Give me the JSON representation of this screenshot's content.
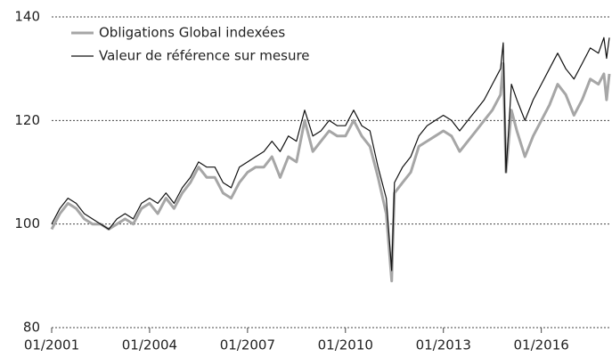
{
  "chart_data": {
    "type": "line",
    "x": [
      "01/2001",
      "04/2001",
      "07/2001",
      "10/2001",
      "01/2002",
      "04/2002",
      "07/2002",
      "10/2002",
      "01/2003",
      "04/2003",
      "07/2003",
      "10/2003",
      "01/2004",
      "04/2004",
      "07/2004",
      "10/2004",
      "01/2005",
      "04/2005",
      "07/2005",
      "10/2005",
      "01/2006",
      "04/2006",
      "07/2006",
      "10/2006",
      "01/2007",
      "04/2007",
      "07/2007",
      "10/2007",
      "01/2008",
      "04/2008",
      "07/2008",
      "10/2008",
      "01/2009",
      "04/2009",
      "07/2009",
      "10/2009",
      "01/2010",
      "04/2010",
      "07/2010",
      "10/2010",
      "01/2011",
      "04/2011",
      "06/2011",
      "07/2011",
      "10/2011",
      "01/2012",
      "04/2012",
      "07/2012",
      "10/2012",
      "01/2013",
      "04/2013",
      "07/2013",
      "10/2013",
      "01/2014",
      "04/2014",
      "07/2014",
      "10/2014",
      "11/2014",
      "12/2014",
      "02/2015",
      "04/2015",
      "07/2015",
      "10/2015",
      "01/2016",
      "04/2016",
      "07/2016",
      "10/2016",
      "01/2017",
      "04/2017",
      "07/2017",
      "10/2017",
      "12/2017",
      "01/2018",
      "02/2018"
    ],
    "series": [
      {
        "name": "Obligations Global indexées",
        "color": "#a6a6a6",
        "values": [
          99,
          102,
          104,
          103,
          101,
          100,
          100,
          99,
          100,
          101,
          100,
          103,
          104,
          102,
          105,
          103,
          106,
          108,
          111,
          109,
          109,
          106,
          105,
          108,
          110,
          111,
          111,
          113,
          109,
          113,
          112,
          120,
          114,
          116,
          118,
          117,
          117,
          120,
          117,
          115,
          109,
          102,
          89,
          106,
          108,
          110,
          115,
          116,
          117,
          118,
          117,
          114,
          116,
          118,
          120,
          122,
          125,
          131,
          110,
          122,
          118,
          113,
          117,
          120,
          123,
          127,
          125,
          121,
          124,
          128,
          127,
          129,
          124,
          129
        ]
      },
      {
        "name": "Valeur de référence sur mesure",
        "color": "#111111",
        "values": [
          100,
          103,
          105,
          104,
          102,
          101,
          100,
          99,
          101,
          102,
          101,
          104,
          105,
          104,
          106,
          104,
          107,
          109,
          112,
          111,
          111,
          108,
          107,
          111,
          112,
          113,
          114,
          116,
          114,
          117,
          116,
          122,
          117,
          118,
          120,
          119,
          119,
          122,
          119,
          118,
          111,
          105,
          91,
          108,
          111,
          113,
          117,
          119,
          120,
          121,
          120,
          118,
          120,
          122,
          124,
          127,
          130,
          135,
          110,
          127,
          124,
          120,
          124,
          127,
          130,
          133,
          130,
          128,
          131,
          134,
          133,
          136,
          132,
          136
        ]
      }
    ],
    "xlim": [
      "01/2001",
      "02/2018"
    ],
    "xticks": [
      "01/2001",
      "01/2004",
      "01/2007",
      "01/2010",
      "01/2013",
      "01/2016"
    ],
    "ylim": [
      80,
      140
    ],
    "yticks": [
      80,
      100,
      120,
      140
    ],
    "grid": true,
    "legend": "top-left"
  }
}
